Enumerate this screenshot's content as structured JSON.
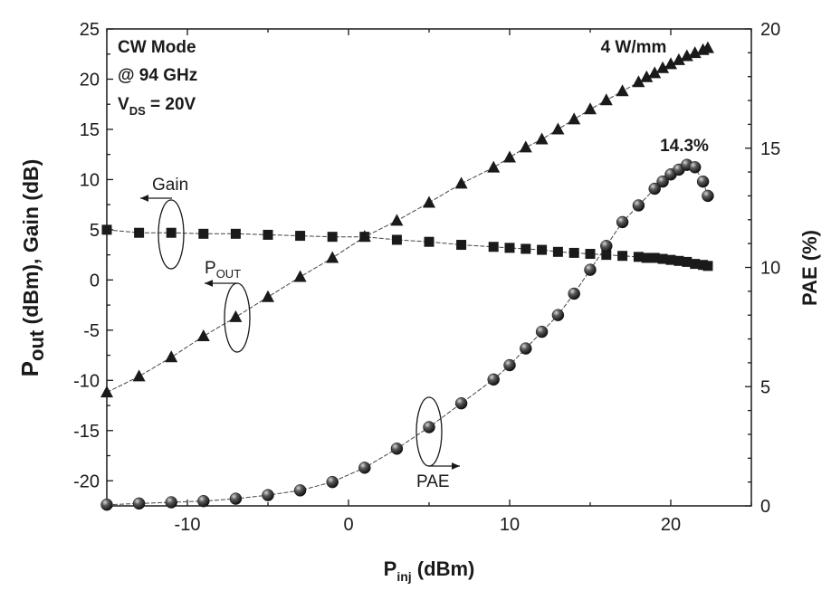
{
  "chart_data": {
    "type": "scatter",
    "x_axis": {
      "label_main": "P",
      "label_sub": "inj",
      "label_rest": " (dBm)",
      "range": [
        -15,
        25
      ],
      "ticks": [
        -10,
        0,
        10,
        20
      ],
      "minor_step": 5
    },
    "y_left_axis": {
      "label_main": "P",
      "label_sub": "out",
      "label_rest": " (dBm), Gain (dB)",
      "range": [
        -22.5,
        25
      ],
      "ticks": [
        -20,
        -15,
        -10,
        -5,
        0,
        5,
        10,
        15,
        20,
        25
      ],
      "minor_step": 2.5
    },
    "y_right_axis": {
      "label": "PAE (%)",
      "range": [
        0,
        20
      ],
      "ticks": [
        0,
        5,
        10,
        15,
        20
      ],
      "minor_step": 1
    },
    "grid": false,
    "series": [
      {
        "name": "Gain",
        "axis": "left",
        "marker": "square",
        "x": [
          -15,
          -13,
          -11,
          -9,
          -7,
          -5,
          -3,
          -1,
          1,
          3,
          5,
          7,
          9,
          10,
          11,
          12,
          13,
          14,
          15,
          16,
          17,
          18,
          18.5,
          19,
          19.5,
          20,
          20.5,
          21,
          21.5,
          22,
          22.3
        ],
        "y": [
          5.0,
          4.7,
          4.7,
          4.6,
          4.6,
          4.5,
          4.4,
          4.3,
          4.3,
          4.0,
          3.8,
          3.5,
          3.3,
          3.2,
          3.1,
          3.0,
          2.8,
          2.7,
          2.6,
          2.5,
          2.4,
          2.3,
          2.2,
          2.2,
          2.1,
          2.0,
          1.9,
          1.8,
          1.6,
          1.5,
          1.4
        ]
      },
      {
        "name": "P_OUT",
        "axis": "left",
        "marker": "triangle",
        "x": [
          -15,
          -13,
          -11,
          -9,
          -7,
          -5,
          -3,
          -1,
          1,
          3,
          5,
          7,
          9,
          10,
          11,
          12,
          13,
          14,
          15,
          16,
          17,
          18,
          18.5,
          19,
          19.5,
          20,
          20.5,
          21,
          21.5,
          22,
          22.3
        ],
        "y": [
          -11.2,
          -9.6,
          -7.7,
          -5.6,
          -3.7,
          -1.7,
          0.3,
          2.2,
          4.3,
          5.9,
          7.7,
          9.6,
          11.2,
          12.2,
          13.2,
          14.0,
          15.0,
          16.0,
          17.0,
          17.9,
          18.8,
          19.7,
          20.2,
          20.6,
          21.1,
          21.5,
          21.9,
          22.3,
          22.6,
          22.9,
          23.1
        ]
      },
      {
        "name": "PAE",
        "axis": "right",
        "marker": "sphere",
        "x": [
          -15,
          -13,
          -11,
          -9,
          -7,
          -5,
          -3,
          -1,
          1,
          3,
          5,
          7,
          9,
          10,
          11,
          12,
          13,
          14,
          15,
          16,
          17,
          18,
          19,
          19.5,
          20,
          20.5,
          21,
          21.5,
          22,
          22.3
        ],
        "y": [
          0.05,
          0.1,
          0.15,
          0.2,
          0.3,
          0.45,
          0.65,
          1.0,
          1.6,
          2.4,
          3.3,
          4.3,
          5.3,
          5.9,
          6.6,
          7.3,
          8.0,
          8.9,
          9.9,
          10.9,
          11.9,
          12.6,
          13.3,
          13.6,
          13.9,
          14.1,
          14.3,
          14.2,
          13.6,
          13.0
        ]
      }
    ],
    "annotations": {
      "mode_line1": "CW Mode",
      "mode_line2": "@ 94 GHz",
      "vds_main": "V",
      "vds_sub": "DS",
      "vds_rest": " = 20V",
      "power_density": "4 W/mm",
      "peak_pae": "14.3%",
      "gain_label": "Gain",
      "pout_label_main": "P",
      "pout_label_sub": "OUT",
      "pae_label": "PAE"
    }
  }
}
